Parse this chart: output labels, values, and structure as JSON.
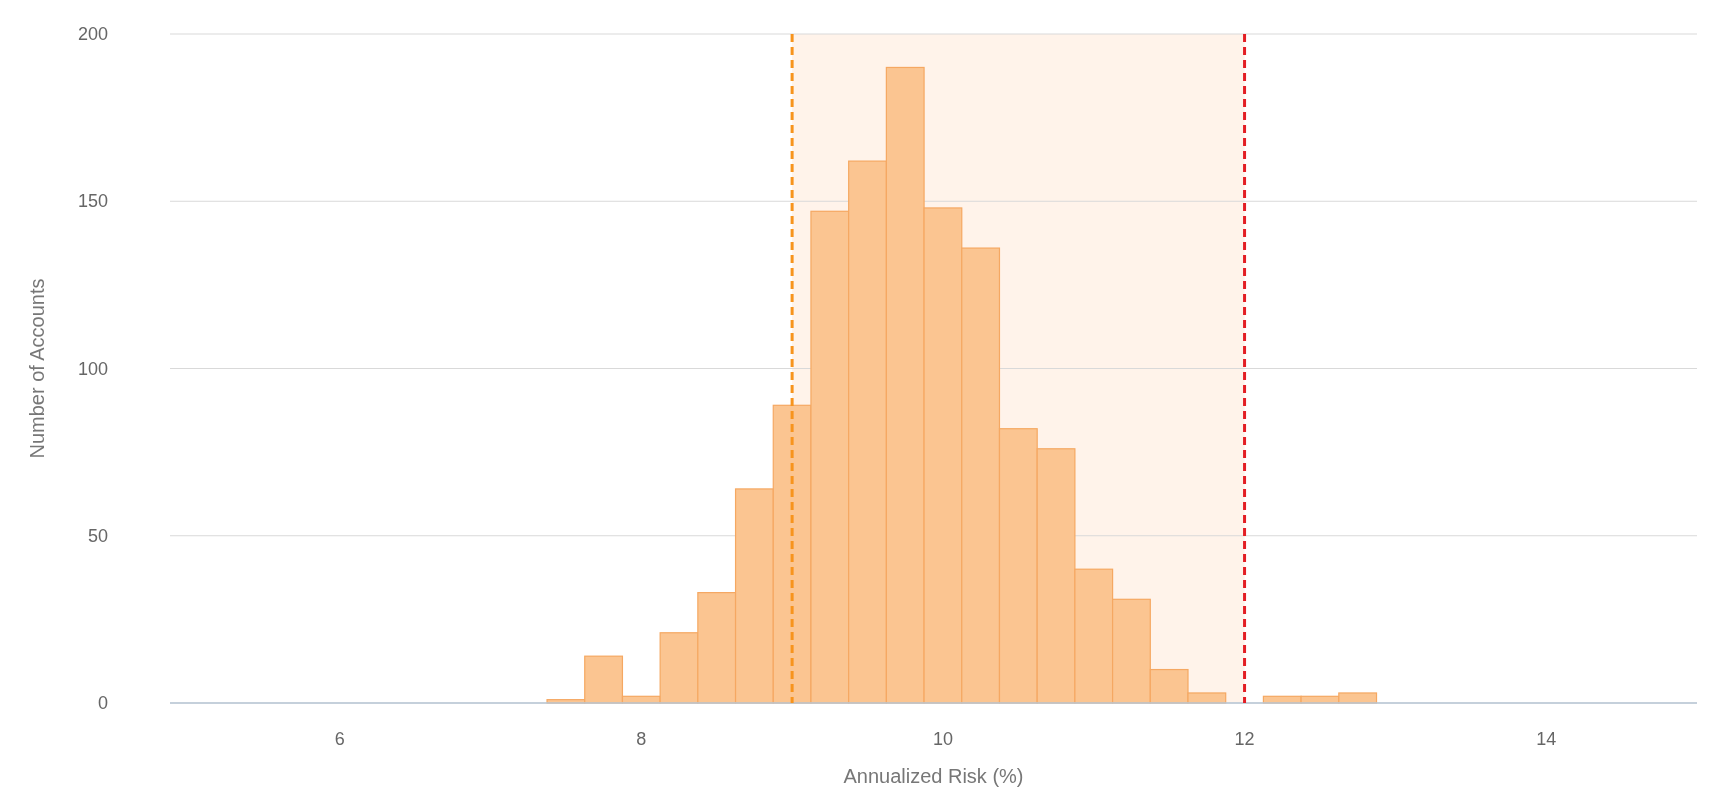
{
  "chart_data": {
    "type": "histogram",
    "xlabel": "Annualized Risk (%)",
    "ylabel": "Number of Accounts",
    "bins": [
      7.375,
      7.625,
      7.875,
      8.125,
      8.375,
      8.625,
      8.875,
      9.125,
      9.375,
      9.625,
      9.875,
      10.125,
      10.375,
      10.625,
      10.875,
      11.125,
      11.375,
      11.625,
      11.875,
      12.125,
      12.375,
      12.625,
      12.875
    ],
    "values": [
      1,
      14,
      2,
      21,
      33,
      64,
      89,
      147,
      162,
      190,
      148,
      136,
      82,
      76,
      40,
      31,
      10,
      3,
      0,
      2,
      2,
      3
    ],
    "color": "#fbc591",
    "xlim": [
      4.875,
      15
    ],
    "xticks": [
      6,
      8,
      10,
      12,
      14
    ],
    "ylim": [
      0,
      200
    ],
    "yticks": [
      0,
      50,
      100,
      150,
      200
    ],
    "grid": "y",
    "bands": [
      {
        "axis": "x",
        "from": 9,
        "to": 12,
        "color": "#fff3ea"
      }
    ],
    "ref_lines": [
      {
        "axis": "x",
        "value": 9,
        "color": "#f7941d",
        "line_style": "dashed"
      },
      {
        "axis": "x",
        "value": 12,
        "color": "#e31e24",
        "line_style": "dashed"
      }
    ]
  }
}
